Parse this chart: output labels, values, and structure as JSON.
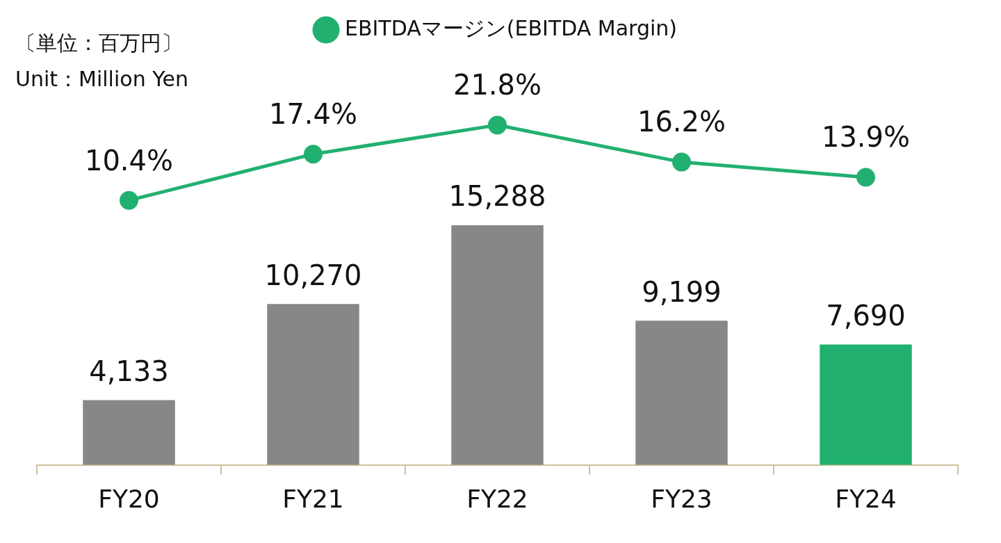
{
  "chart_data": [
    {
      "type": "line",
      "categories": [
        null,
        null,
        null,
        null,
        null
      ],
      "series": [
        {
          "type": "line",
          "name": "EBITDAマージン(EBITDA Margin)",
          "color": "#22b070",
          "marker": "circle",
          "values": [
            10.4,
            17.4,
            21.8,
            16.2,
            13.9
          ],
          "value_labels": [
            "10.4%",
            "17.4%",
            "21.8%",
            "16.2%",
            "13.9%"
          ]
        }
      ],
      "annotations": [
        "〔単位：百万円〕",
        "Unit：Million Yen"
      ],
      "data_labels": true,
      "legend": "top",
      "grid": false,
      "tick_labels": false
    },
    {
      "type": "bar",
      "categories": [
        "FY20",
        "FY21",
        "FY22",
        "FY23",
        "FY24"
      ],
      "colors": [
        "#878787",
        "#878787",
        "#878787",
        "#878787",
        "#22b070"
      ],
      "values": [
        4133,
        10270,
        15288,
        9199,
        7690
      ],
      "value_labels": [
        "4,133",
        "10,270",
        "15,288",
        "9,199",
        "7,690"
      ],
      "data_labels": true,
      "grid": false,
      "tick_labels": "x"
    }
  ]
}
